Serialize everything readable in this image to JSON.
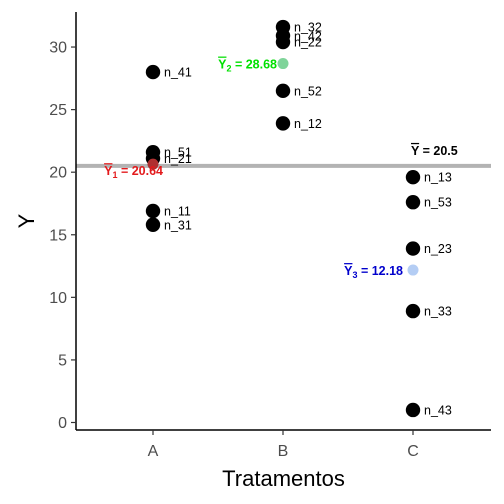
{
  "chart_data": {
    "type": "scatter",
    "xlabel": "Tratamentos",
    "ylabel": "Y",
    "categories": [
      "A",
      "B",
      "C"
    ],
    "ylim": [
      -0.6,
      32.8
    ],
    "yticks": [
      0,
      5,
      10,
      15,
      20,
      25,
      30
    ],
    "grid": false,
    "legend": "none",
    "points": [
      {
        "group": "A",
        "y": 28.0,
        "label": "n_41"
      },
      {
        "group": "A",
        "y": 21.6,
        "label": "n_51"
      },
      {
        "group": "A",
        "y": 21.1,
        "label": "n_21"
      },
      {
        "group": "A",
        "y": 16.9,
        "label": "n_11"
      },
      {
        "group": "A",
        "y": 15.8,
        "label": "n_31"
      },
      {
        "group": "B",
        "y": 31.6,
        "label": "n_32"
      },
      {
        "group": "B",
        "y": 30.9,
        "label": "n_42"
      },
      {
        "group": "B",
        "y": 30.4,
        "label": "n_22"
      },
      {
        "group": "B",
        "y": 26.5,
        "label": "n_52"
      },
      {
        "group": "B",
        "y": 23.9,
        "label": "n_12"
      },
      {
        "group": "C",
        "y": 19.6,
        "label": "n_13"
      },
      {
        "group": "C",
        "y": 17.6,
        "label": "n_53"
      },
      {
        "group": "C",
        "y": 13.9,
        "label": "n_23"
      },
      {
        "group": "C",
        "y": 8.9,
        "label": "n_33"
      },
      {
        "group": "C",
        "y": 1.0,
        "label": "n_43"
      }
    ],
    "group_means": [
      {
        "group": "A",
        "value": 20.64,
        "label": "Y",
        "subscript": "1",
        "text": " = 20.64",
        "color": "#e31a1c",
        "point_color": "#b03030"
      },
      {
        "group": "B",
        "value": 28.68,
        "label": "Y",
        "subscript": "2",
        "text": " = 28.68",
        "color": "#00e000",
        "point_color": "#7fd49a"
      },
      {
        "group": "C",
        "value": 12.18,
        "label": "Y",
        "subscript": "3",
        "text": " = 12.18",
        "color": "#0000cc",
        "point_color": "#b4cdf4"
      }
    ],
    "grand_mean": {
      "value": 20.5,
      "label": "Y",
      "text": " = 20.5",
      "color": "#000000",
      "line_color": "#b3b3b3"
    }
  }
}
